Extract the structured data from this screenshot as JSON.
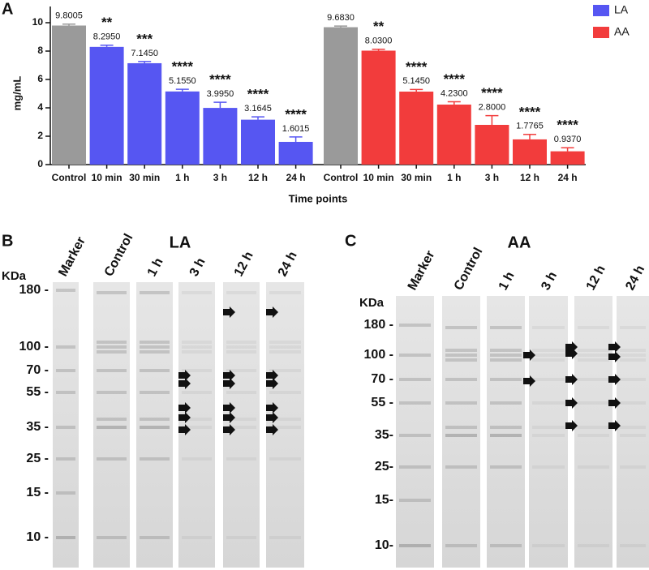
{
  "chart_data": {
    "type": "bar",
    "panel": "A",
    "y_label": "mg/mL",
    "x_label": "Time points",
    "categories": [
      "Control",
      "10 min",
      "30 min",
      "1 h",
      "3 h",
      "12 h",
      "24 h"
    ],
    "ylim": [
      0,
      11
    ],
    "yticks": [
      0,
      2,
      4,
      6,
      8,
      10
    ],
    "legend": "top-right",
    "series": [
      {
        "name": "LA",
        "color": "#5656f2",
        "colors": [
          "#9a9a9a",
          "#5656f2",
          "#5656f2",
          "#5656f2",
          "#5656f2",
          "#5656f2",
          "#5656f2"
        ],
        "values": [
          9.8005,
          8.295,
          7.145,
          5.155,
          3.995,
          3.1645,
          1.6015
        ],
        "value_labels": [
          "9.8005",
          "8.2950",
          "7.1450",
          "5.1550",
          "3.9950",
          "3.1645",
          "1.6015"
        ],
        "errors": [
          0.1,
          0.12,
          0.12,
          0.15,
          0.4,
          0.2,
          0.35
        ],
        "annotations": [
          null,
          "**",
          "***",
          "****",
          "****",
          "****",
          "****"
        ]
      },
      {
        "name": "AA",
        "color": "#f23c3c",
        "colors": [
          "#9a9a9a",
          "#f23c3c",
          "#f23c3c",
          "#f23c3c",
          "#f23c3c",
          "#f23c3c",
          "#f23c3c"
        ],
        "values": [
          9.683,
          8.03,
          5.145,
          4.23,
          2.8,
          1.7765,
          0.937
        ],
        "value_labels": [
          "9.6830",
          "8.0300",
          "5.1450",
          "4.2300",
          "2.8000",
          "1.7765",
          "0.9370"
        ],
        "errors": [
          0.08,
          0.1,
          0.15,
          0.2,
          0.65,
          0.35,
          0.25
        ],
        "annotations": [
          null,
          "**",
          "****",
          "****",
          "****",
          "****",
          "****"
        ]
      }
    ]
  },
  "gels": [
    {
      "panel": "B",
      "title": "LA",
      "unit": "KDa",
      "lanes": [
        "Marker",
        "Control",
        "1 h",
        "3 h",
        "12 h",
        "24 h"
      ],
      "markers": [
        "180 -",
        "100 -",
        "70 -",
        "55 -",
        "35 -",
        "25 -",
        "15 -",
        "10 -"
      ]
    },
    {
      "panel": "C",
      "title": "AA",
      "unit": "KDa",
      "lanes": [
        "Marker",
        "Control",
        "1 h",
        "3 h",
        "12 h",
        "24 h"
      ],
      "markers": [
        "180 -",
        "100 -",
        "70 -",
        "55 -",
        "35-",
        "25-",
        "15-",
        "10-"
      ]
    }
  ]
}
